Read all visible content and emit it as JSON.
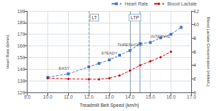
{
  "chart_data": {
    "type": "line",
    "xlabel": "Treadmill Belt Speed (km/h)",
    "ylabel": "Heart Rate (b/min)",
    "y2label": "Blood Lactate Concentration (mMol/L)",
    "xlim": [
      9.0,
      17.0
    ],
    "ylim": [
      120,
      190
    ],
    "y2lim": [
      0.0,
      12.0
    ],
    "xticks": [
      {
        "value": 9,
        "label": "9.0"
      },
      {
        "value": 10,
        "label": "10.0"
      },
      {
        "value": 11,
        "label": "11.0"
      },
      {
        "value": 12,
        "label": "12.0"
      },
      {
        "value": 13,
        "label": "13.0"
      },
      {
        "value": 14,
        "label": "14.0"
      },
      {
        "value": 15,
        "label": "15.0"
      },
      {
        "value": 16,
        "label": "16.0"
      },
      {
        "value": 17,
        "label": "17.0"
      }
    ],
    "yticks": [
      120,
      130,
      140,
      150,
      160,
      170,
      180,
      190
    ],
    "y2ticks": [
      0,
      2,
      4,
      6,
      8,
      10,
      12
    ],
    "grid": true,
    "legend": "upper right",
    "series": [
      {
        "name": "Heart Rate",
        "color": "#4472C4",
        "marker": "square",
        "line_style": "dashed",
        "x": [
          10.0,
          11.0,
          12.0,
          12.5,
          13.0,
          13.5,
          14.0,
          14.5,
          15.0,
          15.5,
          16.0,
          16.5
        ],
        "values": [
          133,
          136,
          142,
          145,
          148,
          152,
          156,
          162,
          163,
          167,
          170,
          176
        ]
      },
      {
        "name": "Blood Lactate",
        "color": "#CC0000",
        "marker": "diamond",
        "line_style": "dashed",
        "axis": "y2",
        "x": [
          10.0,
          11.0,
          12.0,
          12.5,
          13.0,
          13.5,
          14.0,
          14.5,
          15.0,
          15.5,
          16.0
        ],
        "values": [
          2.1,
          2.0,
          1.95,
          1.95,
          2.1,
          2.5,
          3.2,
          4.0,
          4.6,
          5.2,
          6.0
        ]
      }
    ],
    "vlines": [
      {
        "x": 12.0,
        "color": "#7090B0",
        "line_style": "dashed"
      },
      {
        "x": 14.0,
        "color": "#6699CC",
        "line_style": "solid"
      },
      {
        "x": 14.5,
        "color": "#6699CC",
        "line_style": "solid"
      },
      {
        "x": 14.0,
        "color": "#999999",
        "line_style": "dashed"
      }
    ],
    "annotations": [
      {
        "text": "LT",
        "x": 12.08,
        "y": 187,
        "box": true,
        "color": "#888888",
        "align": "left"
      },
      {
        "text": "LTP",
        "x": 14.25,
        "y": 187,
        "box": true,
        "color": "#6699CC",
        "align": "center"
      },
      {
        "text": "EASY",
        "x": 10.8,
        "y": 141
      },
      {
        "text": "STEADY",
        "x": 13.0,
        "y": 154
      },
      {
        "text": "THRESHOLD",
        "x": 14.0,
        "y": 161
      },
      {
        "text": "INTERVAL",
        "x": 15.5,
        "y": 168
      }
    ]
  }
}
